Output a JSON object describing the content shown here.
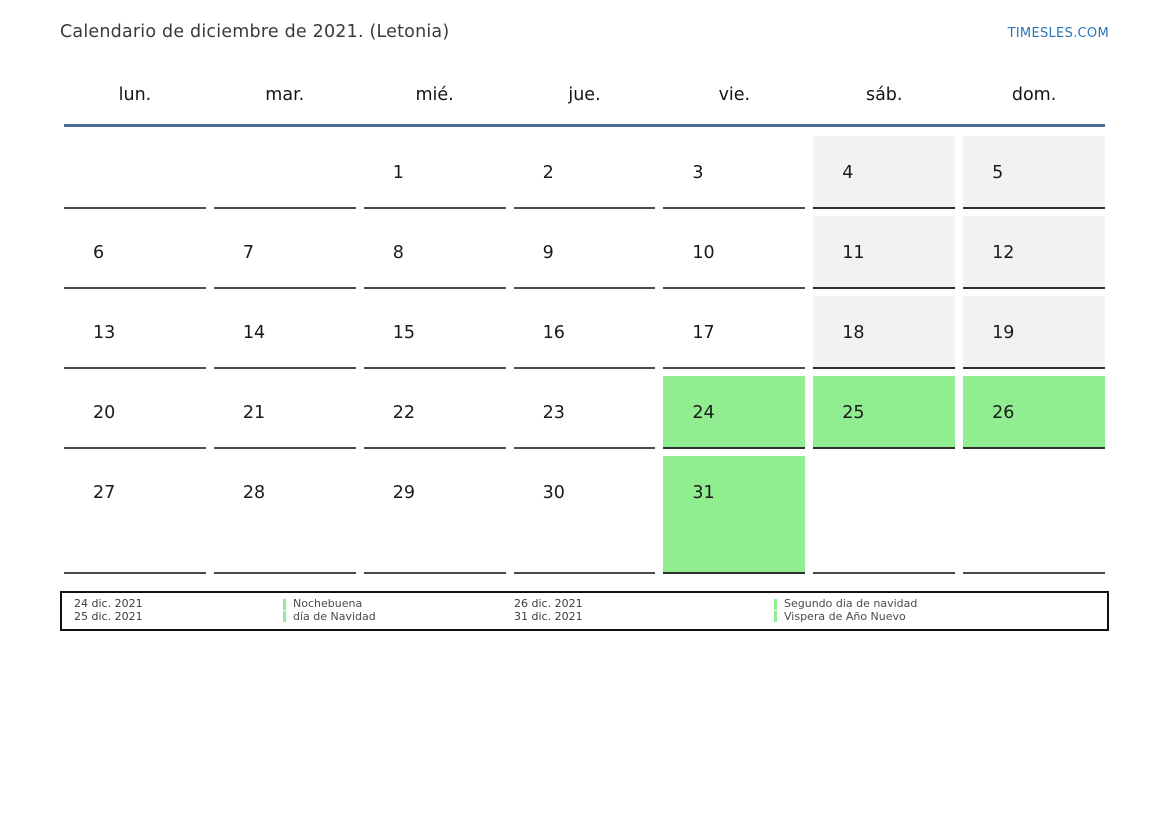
{
  "page": {
    "title": "Calendario de diciembre de 2021. (Letonia)",
    "site": "TIMESLES.COM"
  },
  "calendar": {
    "weekdays": [
      "lun.",
      "mar.",
      "mié.",
      "jue.",
      "vie.",
      "sáb.",
      "dom."
    ],
    "weeks": [
      [
        {
          "day": "",
          "style": "normal"
        },
        {
          "day": "",
          "style": "normal"
        },
        {
          "day": "1",
          "style": "normal"
        },
        {
          "day": "2",
          "style": "normal"
        },
        {
          "day": "3",
          "style": "normal"
        },
        {
          "day": "4",
          "style": "weekend"
        },
        {
          "day": "5",
          "style": "weekend"
        }
      ],
      [
        {
          "day": "6",
          "style": "normal"
        },
        {
          "day": "7",
          "style": "normal"
        },
        {
          "day": "8",
          "style": "normal"
        },
        {
          "day": "9",
          "style": "normal"
        },
        {
          "day": "10",
          "style": "normal"
        },
        {
          "day": "11",
          "style": "weekend"
        },
        {
          "day": "12",
          "style": "weekend"
        }
      ],
      [
        {
          "day": "13",
          "style": "normal"
        },
        {
          "day": "14",
          "style": "normal"
        },
        {
          "day": "15",
          "style": "normal"
        },
        {
          "day": "16",
          "style": "normal"
        },
        {
          "day": "17",
          "style": "normal"
        },
        {
          "day": "18",
          "style": "weekend"
        },
        {
          "day": "19",
          "style": "weekend"
        }
      ],
      [
        {
          "day": "20",
          "style": "normal"
        },
        {
          "day": "21",
          "style": "normal"
        },
        {
          "day": "22",
          "style": "normal"
        },
        {
          "day": "23",
          "style": "normal"
        },
        {
          "day": "24",
          "style": "holiday"
        },
        {
          "day": "25",
          "style": "holiday"
        },
        {
          "day": "26",
          "style": "holiday"
        }
      ],
      [
        {
          "day": "27",
          "style": "normal"
        },
        {
          "day": "28",
          "style": "normal"
        },
        {
          "day": "29",
          "style": "normal"
        },
        {
          "day": "30",
          "style": "normal"
        },
        {
          "day": "31",
          "style": "holiday"
        },
        {
          "day": "",
          "style": "normal"
        },
        {
          "day": "",
          "style": "normal"
        }
      ]
    ]
  },
  "legend": {
    "entries": [
      {
        "dates": [
          "24 dic. 2021",
          "25 dic. 2021"
        ],
        "labels": [
          "Nochebuena",
          "día de Navidad"
        ]
      },
      {
        "dates": [
          "26 dic. 2021",
          "31 dic. 2021"
        ],
        "labels": [
          "Segundo dia de navidad",
          "Vispera de Año Nuevo"
        ]
      }
    ]
  },
  "colors": {
    "accent_blue": "#2d74b8",
    "header_rule_blue": "#4a6f96",
    "holiday_green": "#90ee90",
    "weekend_gray": "#f2f2f2"
  }
}
